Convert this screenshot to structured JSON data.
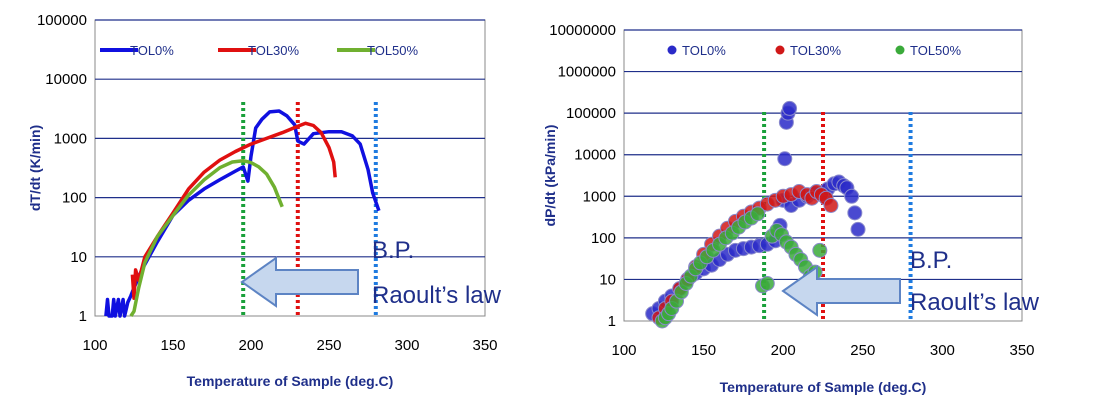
{
  "chart_data": [
    {
      "type": "line",
      "ylabel": "dT/dt (K/min)",
      "xlabel": "Temperature of Sample (deg.C)",
      "x_ticks": [
        100,
        150,
        200,
        250,
        300,
        350
      ],
      "y_ticks": [
        "1",
        "10",
        "100",
        "1000",
        "10000",
        "100000"
      ],
      "xlim": [
        100,
        350
      ],
      "ylim": [
        1,
        100000
      ],
      "y_scale": "log",
      "grid": "horizontal",
      "legend_position": "top",
      "series": [
        {
          "name": "TOL0%",
          "color": "#1010e0",
          "points": [
            [
              107,
              1
            ],
            [
              108,
              1.9
            ],
            [
              109,
              1
            ],
            [
              111,
              1
            ],
            [
              112,
              1.9
            ],
            [
              113,
              1
            ],
            [
              115,
              1.9
            ],
            [
              116,
              1
            ],
            [
              118,
              1.9
            ],
            [
              119,
              1
            ],
            [
              121,
              1.7
            ],
            [
              123,
              2.2
            ],
            [
              125,
              3
            ],
            [
              130,
              6
            ],
            [
              140,
              18
            ],
            [
              150,
              50
            ],
            [
              160,
              90
            ],
            [
              170,
              140
            ],
            [
              180,
              200
            ],
            [
              190,
              280
            ],
            [
              195,
              330
            ],
            [
              197,
              230
            ],
            [
              198,
              190
            ],
            [
              200,
              500
            ],
            [
              203,
              1500
            ],
            [
              207,
              2100
            ],
            [
              212,
              2800
            ],
            [
              218,
              2900
            ],
            [
              223,
              2400
            ],
            [
              228,
              1700
            ],
            [
              230,
              900
            ],
            [
              234,
              800
            ],
            [
              240,
              1200
            ],
            [
              250,
              1300
            ],
            [
              258,
              1300
            ],
            [
              265,
              1100
            ],
            [
              270,
              800
            ],
            [
              275,
              300
            ],
            [
              278,
              120
            ],
            [
              282,
              60
            ]
          ]
        },
        {
          "name": "TOL30%",
          "color": "#e01010",
          "points": [
            [
              124,
              5
            ],
            [
              125,
              2
            ],
            [
              126,
              6
            ],
            [
              128,
              4
            ],
            [
              132,
              10
            ],
            [
              140,
              22
            ],
            [
              150,
              55
            ],
            [
              160,
              140
            ],
            [
              170,
              270
            ],
            [
              180,
              430
            ],
            [
              190,
              600
            ],
            [
              200,
              800
            ],
            [
              210,
              1000
            ],
            [
              220,
              1250
            ],
            [
              230,
              1600
            ],
            [
              235,
              1800
            ],
            [
              240,
              1650
            ],
            [
              245,
              1250
            ],
            [
              250,
              700
            ],
            [
              253,
              400
            ],
            [
              254,
              220
            ]
          ]
        },
        {
          "name": "TOL50%",
          "color": "#70b030",
          "points": [
            [
              123,
              1
            ],
            [
              125,
              1.2
            ],
            [
              128,
              3
            ],
            [
              132,
              8
            ],
            [
              140,
              22
            ],
            [
              150,
              50
            ],
            [
              160,
              110
            ],
            [
              170,
              200
            ],
            [
              180,
              320
            ],
            [
              188,
              400
            ],
            [
              195,
              420
            ],
            [
              200,
              390
            ],
            [
              205,
              330
            ],
            [
              210,
              250
            ],
            [
              215,
              150
            ],
            [
              220,
              70
            ]
          ]
        }
      ],
      "vlines": [
        {
          "x": 195,
          "color": "#1aa03a"
        },
        {
          "x": 230,
          "color": "#e01010"
        },
        {
          "x": 280,
          "color": "#1e7be0"
        }
      ],
      "annotation": [
        "B.P.",
        "Raoult’s law"
      ]
    },
    {
      "type": "scatter",
      "ylabel": "dP/dt (kPa/min)",
      "xlabel": "Temperature of Sample (deg.C)",
      "x_ticks": [
        100,
        150,
        200,
        250,
        300,
        350
      ],
      "y_ticks": [
        "1",
        "10",
        "100",
        "1000",
        "10000",
        "100000",
        "1000000",
        "10000000"
      ],
      "xlim": [
        100,
        350
      ],
      "ylim": [
        1,
        10000000
      ],
      "y_scale": "log",
      "grid": "horizontal",
      "legend_position": "top",
      "series": [
        {
          "name": "TOL0%",
          "color": "#2a2ac8",
          "points": [
            [
              118,
              1.5
            ],
            [
              122,
              2
            ],
            [
              126,
              3
            ],
            [
              130,
              4
            ],
            [
              135,
              6
            ],
            [
              140,
              10
            ],
            [
              145,
              14
            ],
            [
              150,
              18
            ],
            [
              155,
              22
            ],
            [
              160,
              30
            ],
            [
              165,
              40
            ],
            [
              170,
              50
            ],
            [
              175,
              55
            ],
            [
              180,
              60
            ],
            [
              185,
              65
            ],
            [
              190,
              70
            ],
            [
              195,
              85
            ],
            [
              198,
              200
            ],
            [
              200,
              800
            ],
            [
              201,
              8000
            ],
            [
              202,
              60000
            ],
            [
              203,
              100000
            ],
            [
              204,
              130000
            ],
            [
              205,
              600
            ],
            [
              210,
              800
            ],
            [
              215,
              1000
            ],
            [
              220,
              1200
            ],
            [
              225,
              1100
            ],
            [
              228,
              1500
            ],
            [
              232,
              2000
            ],
            [
              235,
              2200
            ],
            [
              238,
              1800
            ],
            [
              240,
              1600
            ],
            [
              243,
              1000
            ],
            [
              245,
              400
            ],
            [
              247,
              160
            ]
          ]
        },
        {
          "name": "TOL30%",
          "color": "#d01818",
          "points": [
            [
              122,
              1.2
            ],
            [
              126,
              2
            ],
            [
              130,
              3
            ],
            [
              135,
              6
            ],
            [
              140,
              10
            ],
            [
              145,
              20
            ],
            [
              150,
              40
            ],
            [
              155,
              70
            ],
            [
              160,
              110
            ],
            [
              165,
              170
            ],
            [
              170,
              250
            ],
            [
              175,
              330
            ],
            [
              180,
              420
            ],
            [
              185,
              520
            ],
            [
              190,
              650
            ],
            [
              195,
              800
            ],
            [
              200,
              1000
            ],
            [
              205,
              1100
            ],
            [
              210,
              1300
            ],
            [
              215,
              1100
            ],
            [
              218,
              900
            ],
            [
              221,
              1300
            ],
            [
              224,
              1100
            ],
            [
              227,
              900
            ],
            [
              230,
              600
            ]
          ]
        },
        {
          "name": "TOL50%",
          "color": "#3aaa3a",
          "points": [
            [
              124,
              1
            ],
            [
              126,
              1.2
            ],
            [
              128,
              1.5
            ],
            [
              130,
              2
            ],
            [
              133,
              3
            ],
            [
              136,
              5
            ],
            [
              139,
              8
            ],
            [
              142,
              12
            ],
            [
              145,
              18
            ],
            [
              148,
              25
            ],
            [
              152,
              35
            ],
            [
              156,
              50
            ],
            [
              160,
              70
            ],
            [
              164,
              100
            ],
            [
              168,
              130
            ],
            [
              172,
              180
            ],
            [
              176,
              240
            ],
            [
              180,
              300
            ],
            [
              184,
              380
            ],
            [
              187,
              7
            ],
            [
              190,
              8
            ],
            [
              193,
              110
            ],
            [
              196,
              150
            ],
            [
              199,
              120
            ],
            [
              202,
              80
            ],
            [
              205,
              60
            ],
            [
              208,
              40
            ],
            [
              211,
              30
            ],
            [
              214,
              20
            ],
            [
              217,
              12
            ],
            [
              220,
              15
            ],
            [
              223,
              50
            ]
          ]
        }
      ],
      "vlines": [
        {
          "x": 188,
          "color": "#1aa03a"
        },
        {
          "x": 225,
          "color": "#e01010"
        },
        {
          "x": 280,
          "color": "#1e7be0"
        }
      ],
      "annotation": [
        "B.P.",
        "Raoult’s law"
      ]
    }
  ]
}
